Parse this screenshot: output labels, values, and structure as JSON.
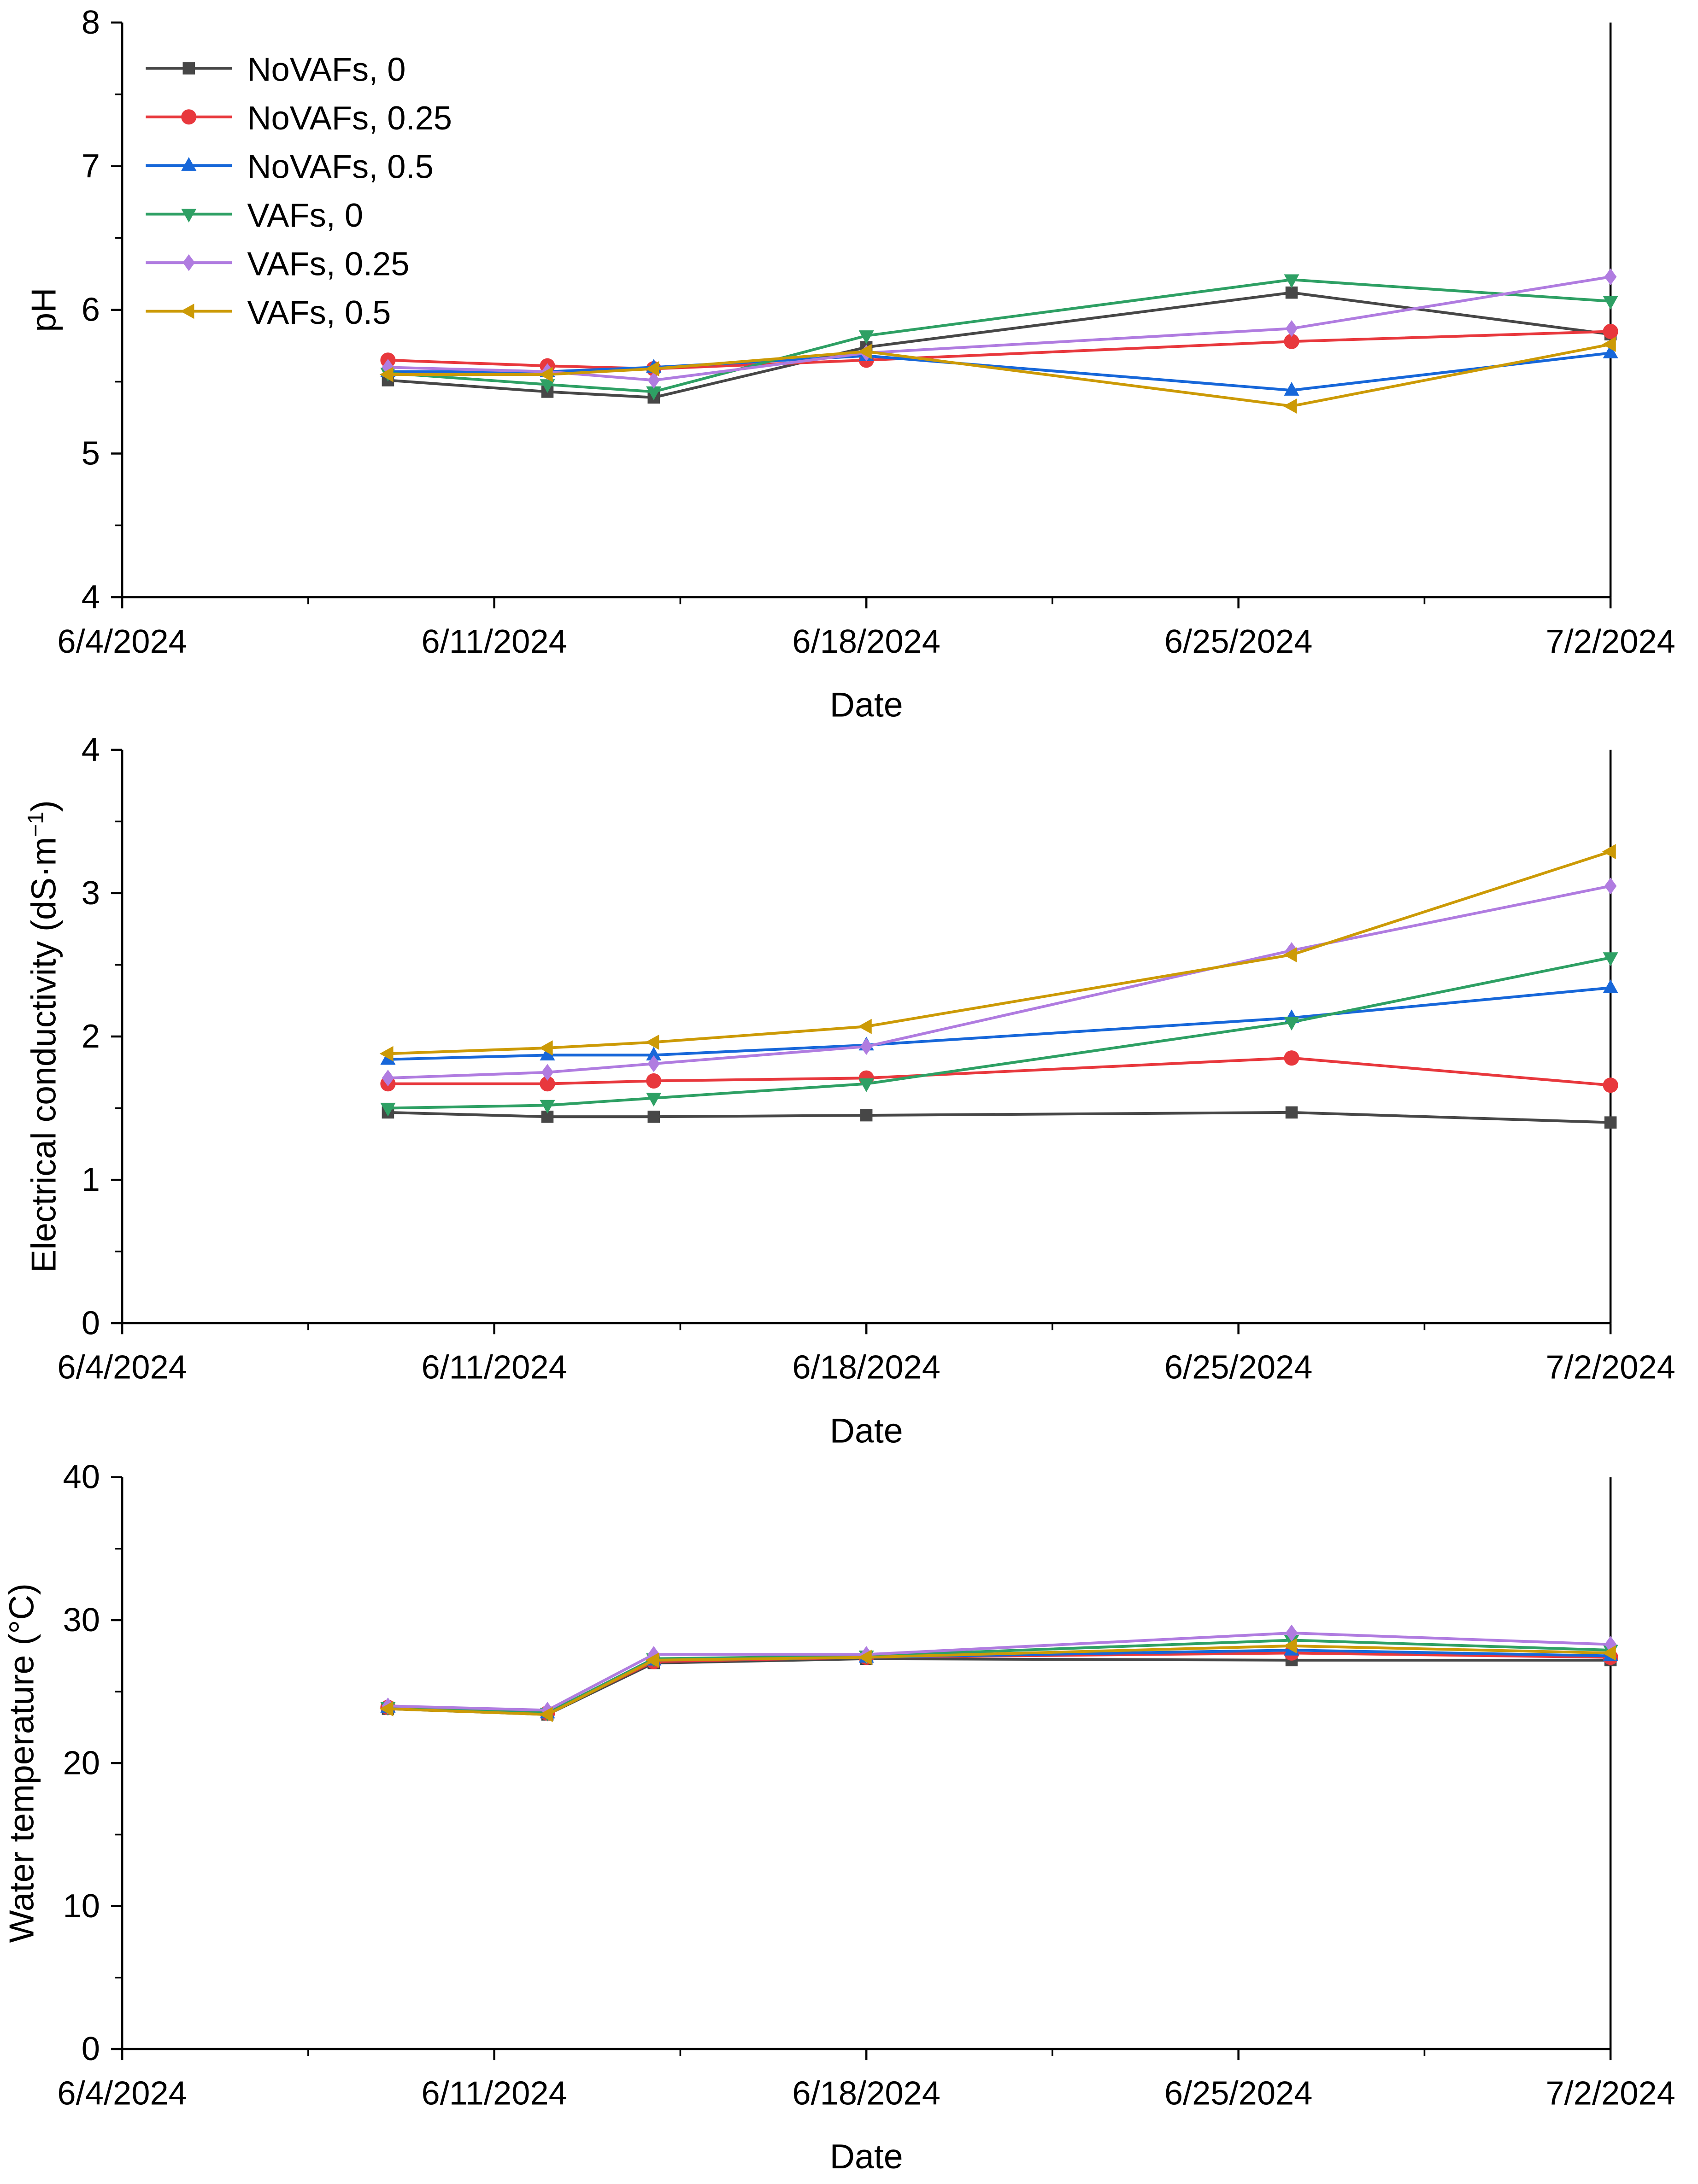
{
  "chart_data": [
    {
      "type": "line",
      "ylabel": "pH",
      "xlabel": "Date",
      "ylim": [
        4,
        8
      ],
      "yticks": [
        4,
        5,
        6,
        7,
        8
      ],
      "xlim": [
        "6/4/2024",
        "7/2/2024"
      ],
      "xtick_labels": [
        "6/4/2024",
        "6/11/2024",
        "6/18/2024",
        "6/25/2024",
        "7/2/2024"
      ],
      "x": [
        "6/9/2024",
        "6/12/2024",
        "6/14/2024",
        "6/18/2024",
        "6/26/2024",
        "7/2/2024"
      ],
      "legend": "top-left",
      "series": [
        {
          "name": "NoVAFs, 0",
          "values": [
            5.51,
            5.43,
            5.39,
            5.74,
            6.12,
            5.83
          ]
        },
        {
          "name": "NoVAFs, 0.25",
          "values": [
            5.65,
            5.61,
            5.59,
            5.65,
            5.78,
            5.85
          ]
        },
        {
          "name": "NoVAFs, 0.5",
          "values": [
            5.57,
            5.57,
            5.6,
            5.68,
            5.44,
            5.7
          ]
        },
        {
          "name": "VAFs, 0",
          "values": [
            5.56,
            5.48,
            5.43,
            5.82,
            6.21,
            6.06
          ]
        },
        {
          "name": "VAFs, 0.25",
          "values": [
            5.6,
            5.57,
            5.51,
            5.7,
            5.87,
            6.23
          ]
        },
        {
          "name": "VAFs, 0.5",
          "values": [
            5.55,
            5.55,
            5.59,
            5.71,
            5.33,
            5.76
          ]
        }
      ]
    },
    {
      "type": "line",
      "ylabel": "Electrical conductivity (dS·m",
      "ylabel_sup": "−1",
      "ylabel_end": ")",
      "xlabel": "Date",
      "ylim": [
        0,
        4
      ],
      "yticks": [
        0,
        1,
        2,
        3,
        4
      ],
      "xlim": [
        "6/4/2024",
        "7/2/2024"
      ],
      "xtick_labels": [
        "6/4/2024",
        "6/11/2024",
        "6/18/2024",
        "6/25/2024",
        "7/2/2024"
      ],
      "x": [
        "6/9/2024",
        "6/12/2024",
        "6/14/2024",
        "6/18/2024",
        "6/26/2024",
        "7/2/2024"
      ],
      "series": [
        {
          "name": "NoVAFs, 0",
          "values": [
            1.47,
            1.44,
            1.44,
            1.45,
            1.47,
            1.4
          ]
        },
        {
          "name": "NoVAFs, 0.25",
          "values": [
            1.67,
            1.67,
            1.69,
            1.71,
            1.85,
            1.66
          ]
        },
        {
          "name": "NoVAFs, 0.5",
          "values": [
            1.84,
            1.87,
            1.87,
            1.94,
            2.13,
            2.34
          ]
        },
        {
          "name": "VAFs, 0",
          "values": [
            1.5,
            1.52,
            1.57,
            1.67,
            2.1,
            2.55
          ]
        },
        {
          "name": "VAFs, 0.25",
          "values": [
            1.71,
            1.75,
            1.81,
            1.93,
            2.6,
            3.05
          ]
        },
        {
          "name": "VAFs, 0.5",
          "values": [
            1.88,
            1.92,
            1.96,
            2.07,
            2.57,
            3.29
          ]
        }
      ]
    },
    {
      "type": "line",
      "ylabel": "Water temperature (°C)",
      "xlabel": "Date",
      "ylim": [
        0,
        40
      ],
      "yticks": [
        0,
        10,
        20,
        30,
        40
      ],
      "xlim": [
        "6/4/2024",
        "7/2/2024"
      ],
      "xtick_labels": [
        "6/4/2024",
        "6/11/2024",
        "6/18/2024",
        "6/25/2024",
        "7/2/2024"
      ],
      "x": [
        "6/9/2024",
        "6/12/2024",
        "6/14/2024",
        "6/18/2024",
        "6/26/2024",
        "7/2/2024"
      ],
      "series": [
        {
          "name": "NoVAFs, 0",
          "values": [
            23.8,
            23.4,
            27.0,
            27.3,
            27.2,
            27.2
          ]
        },
        {
          "name": "NoVAFs, 0.25",
          "values": [
            23.9,
            23.5,
            27.1,
            27.4,
            27.7,
            27.4
          ]
        },
        {
          "name": "NoVAFs, 0.5",
          "values": [
            23.9,
            23.5,
            27.2,
            27.4,
            27.9,
            27.5
          ]
        },
        {
          "name": "VAFs, 0",
          "values": [
            23.9,
            23.5,
            27.3,
            27.5,
            28.6,
            27.9
          ]
        },
        {
          "name": "VAFs, 0.25",
          "values": [
            24.0,
            23.7,
            27.6,
            27.6,
            29.1,
            28.3
          ]
        },
        {
          "name": "VAFs, 0.5",
          "values": [
            23.8,
            23.4,
            27.2,
            27.4,
            28.2,
            27.7
          ]
        }
      ]
    }
  ],
  "series_style": [
    {
      "color": "#474747",
      "marker": "square"
    },
    {
      "color": "#e8383d",
      "marker": "circle"
    },
    {
      "color": "#1767d9",
      "marker": "triangle-up"
    },
    {
      "color": "#2ea064",
      "marker": "triangle-down"
    },
    {
      "color": "#b07ce0",
      "marker": "diamond"
    },
    {
      "color": "#cc9a06",
      "marker": "triangle-left"
    }
  ]
}
